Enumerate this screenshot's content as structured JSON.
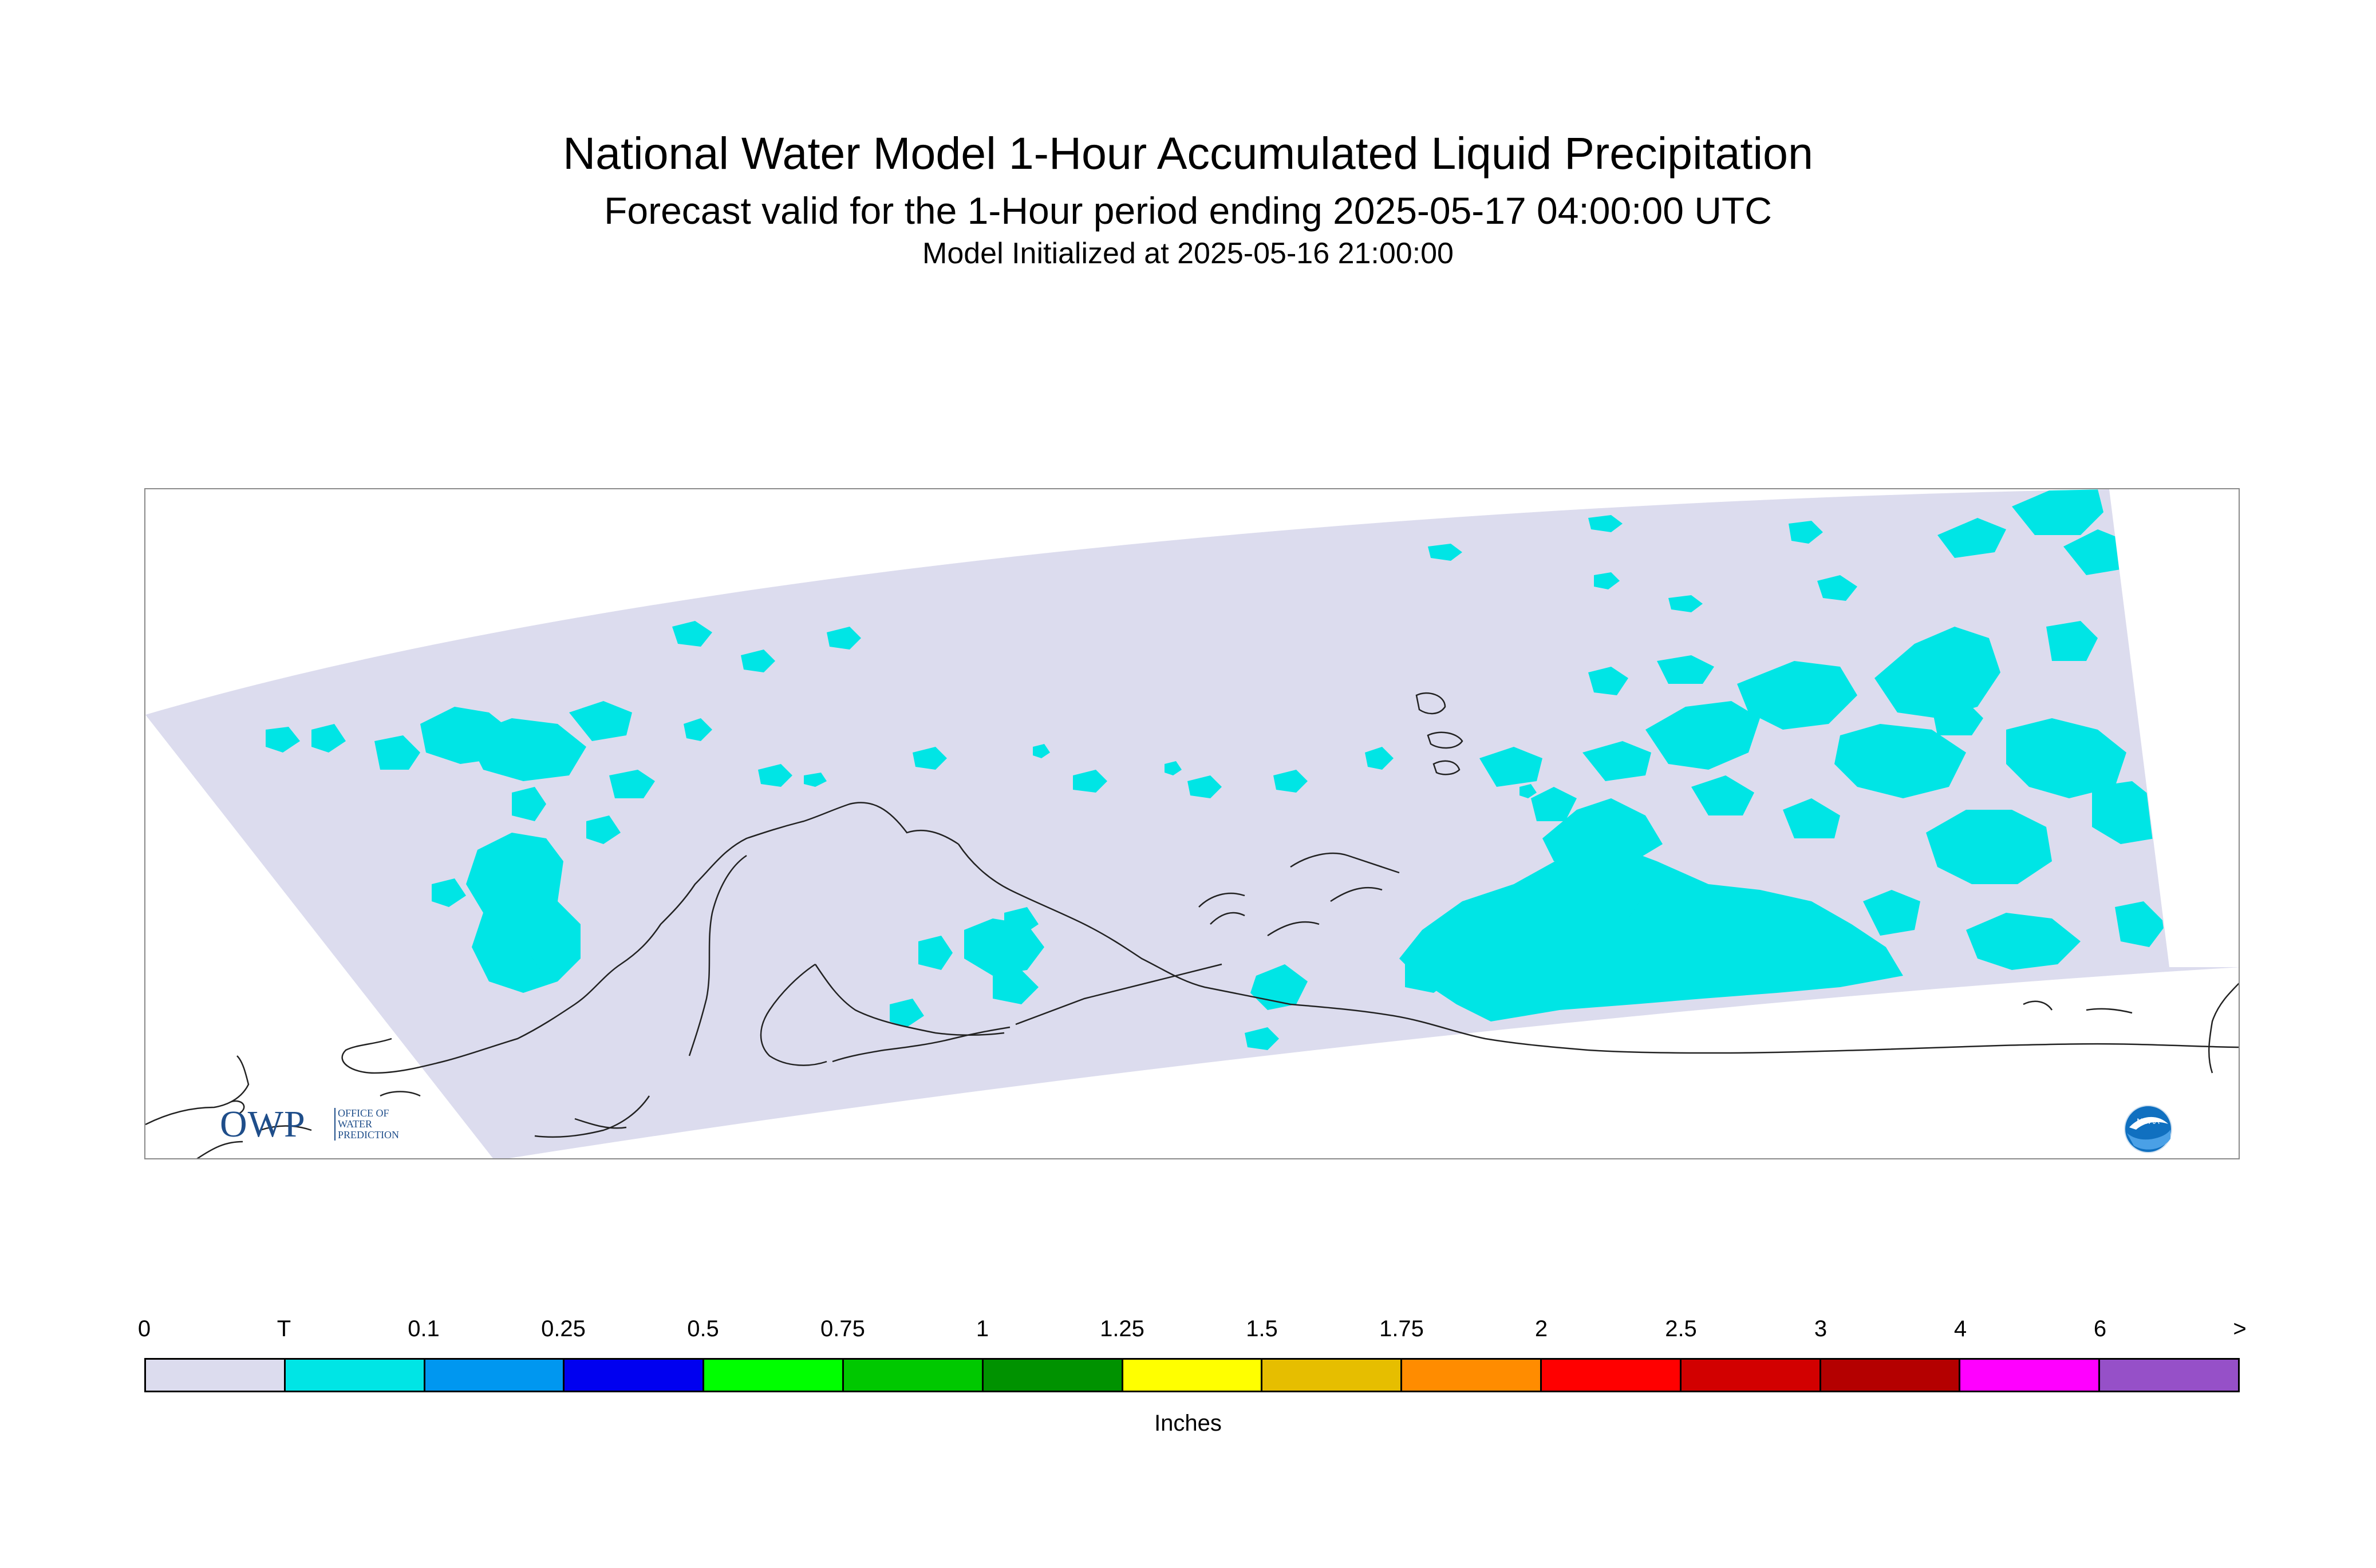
{
  "header": {
    "title": "National Water Model 1-Hour Accumulated Liquid Precipitation",
    "subtitle": "Forecast valid for the 1-Hour period ending 2025-05-17 04:00:00 UTC",
    "initialized": "Model Initialized at 2025-05-16 21:00:00"
  },
  "map": {
    "domain_color": "#dcdcee",
    "precip_color": "#00e5e5",
    "coast_color": "#222222"
  },
  "logos": {
    "owp_letters": "OWP",
    "owp_name": "OFFICE OF WATER PREDICTION",
    "noaa_label": "NOAA"
  },
  "legend": {
    "unit": "Inches",
    "ticks": [
      "0",
      "T",
      "0.1",
      "0.25",
      "0.5",
      "0.75",
      "1",
      "1.25",
      "1.5",
      "1.75",
      "2",
      "2.5",
      "3",
      "4",
      "6",
      ">"
    ],
    "colors": [
      "#dcdcee",
      "#00e5e5",
      "#0097f0",
      "#0000f0",
      "#00ff00",
      "#00c800",
      "#009200",
      "#ffff00",
      "#e6be00",
      "#ff8c00",
      "#ff0000",
      "#d20000",
      "#b40000",
      "#ff00ff",
      "#9650c8"
    ]
  }
}
